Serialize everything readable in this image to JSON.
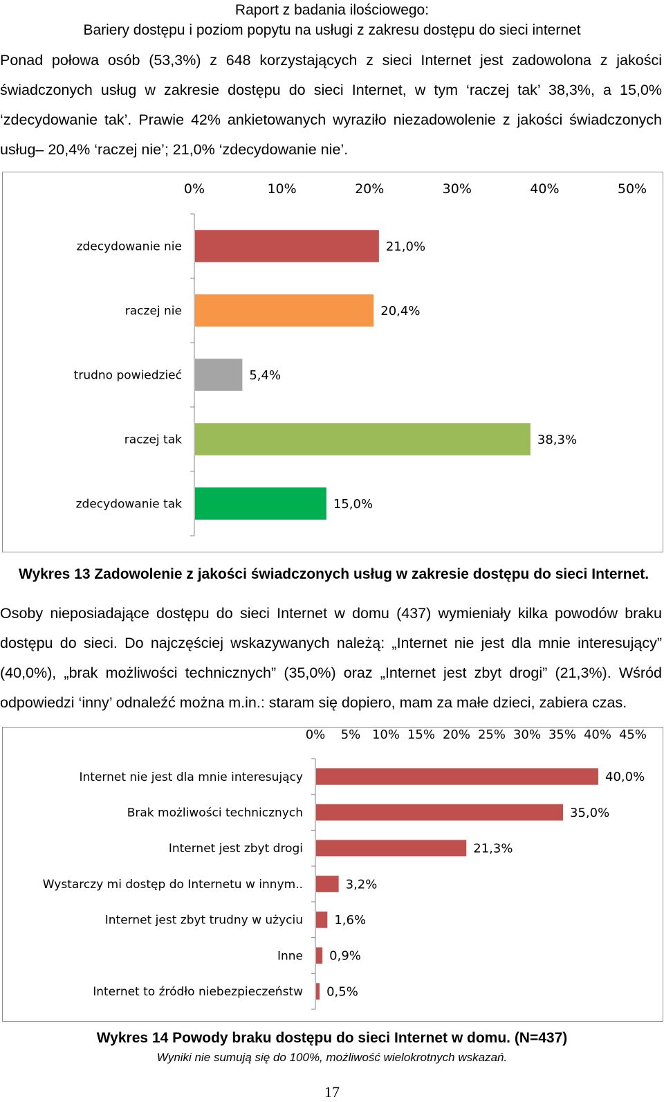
{
  "header": {
    "line1": "Raport z badania ilościowego:",
    "line2": "Bariery dostępu i poziom popytu na usługi z zakresu dostępu do sieci internet"
  },
  "paragraph1": "Ponad połowa osób (53,3%) z 648 korzystających z sieci Internet jest zadowolona z jakości świadczonych usług w zakresie dostępu do sieci Internet, w tym ‘raczej tak’ 38,3%, a 15,0% ‘zdecydowanie tak’. Prawie 42% ankietowanych wyraziło niezadowolenie z jakości świadczonych usług– 20,4% ‘raczej nie’; 21,0% ‘zdecydowanie nie’.",
  "caption1": "Wykres 13 Zadowolenie z jakości świadczonych usług w zakresie dostępu do sieci Internet.",
  "paragraph2": "Osoby nieposiadające dostępu do sieci Internet w domu (437) wymieniały kilka powodów braku dostępu do sieci. Do najczęściej wskazywanych należą: „Internet nie jest dla mnie interesujący” (40,0%), „brak możliwości technicznych” (35,0%) oraz „Internet jest zbyt drogi” (21,3%). Wśród odpowiedzi ‘inny’ odnaleźć można m.in.: staram się dopiero, mam za małe dzieci, zabiera czas.",
  "caption2": "Wykres 14 Powody braku dostępu do sieci Internet w domu. (N=437)",
  "note2": "Wyniki nie sumują się do 100%, możliwość wielokrotnych wskazań.",
  "page_number": "17",
  "chart_data": [
    {
      "type": "bar",
      "orientation": "horizontal",
      "xlim": [
        0,
        50
      ],
      "x_ticks": [
        "0%",
        "10%",
        "20%",
        "30%",
        "40%",
        "50%"
      ],
      "x_tick_values": [
        0,
        10,
        20,
        30,
        40,
        50
      ],
      "axis_position": "top",
      "categories": [
        "zdecydowanie nie",
        "raczej nie",
        "trudno powiedzieć",
        "raczej tak",
        "zdecydowanie tak"
      ],
      "values": [
        21.0,
        20.4,
        5.4,
        38.3,
        15.0
      ],
      "value_labels": [
        "21,0%",
        "20,4%",
        "5,4%",
        "38,3%",
        "15,0%"
      ],
      "colors": [
        "#c0504d",
        "#f79646",
        "#a5a5a5",
        "#9bbb59",
        "#00b050"
      ],
      "grid": false
    },
    {
      "type": "bar",
      "orientation": "horizontal",
      "xlim": [
        0,
        45
      ],
      "x_ticks": [
        "0%",
        "5%",
        "10%",
        "15%",
        "20%",
        "25%",
        "30%",
        "35%",
        "40%",
        "45%"
      ],
      "x_tick_values": [
        0,
        5,
        10,
        15,
        20,
        25,
        30,
        35,
        40,
        45
      ],
      "axis_position": "top",
      "categories": [
        "Internet nie jest dla mnie interesujący",
        "Brak możliwości technicznych",
        "Internet jest zbyt drogi",
        "Wystarczy mi dostęp do Internetu w innym..",
        "Internet jest zbyt trudny w użyciu",
        "Inne",
        "Internet to źródło niebezpieczeństw"
      ],
      "values": [
        40.0,
        35.0,
        21.3,
        3.2,
        1.6,
        0.9,
        0.5
      ],
      "value_labels": [
        "40,0%",
        "35,0%",
        "21,3%",
        "3,2%",
        "1,6%",
        "0,9%",
        "0,5%"
      ],
      "colors": [
        "#c0504d"
      ],
      "grid": false
    }
  ]
}
